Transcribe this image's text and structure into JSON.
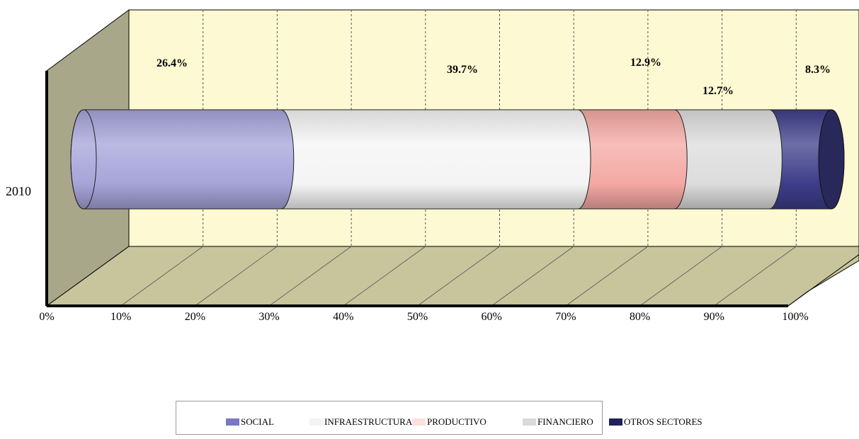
{
  "chart_data": {
    "type": "bar",
    "orientation": "horizontal",
    "stacked": true,
    "style": "3d-cylinder",
    "categories": [
      "2010"
    ],
    "series": [
      {
        "name": "SOCIAL",
        "values": [
          26.4
        ],
        "label": "26.4%",
        "color": "#a6a3d9"
      },
      {
        "name": "INFRAESTRUCTURA",
        "values": [
          39.7
        ],
        "label": "39.7%",
        "color": "#f4f4f4"
      },
      {
        "name": "PRODUCTIVO",
        "values": [
          12.9
        ],
        "label": "12.9%",
        "color": "#f4a8a3"
      },
      {
        "name": "FINANCIERO",
        "values": [
          12.7
        ],
        "label": "12.7%",
        "color": "#dcdcdc"
      },
      {
        "name": "OTROS SECTORES",
        "values": [
          8.3
        ],
        "label": "8.3%",
        "color": "#3d3d8a"
      }
    ],
    "x_ticks": [
      "0%",
      "10%",
      "20%",
      "30%",
      "40%",
      "50%",
      "60%",
      "70%",
      "80%",
      "90%",
      "100%"
    ],
    "xlim": [
      0,
      100
    ],
    "grid": true,
    "legend_position": "bottom",
    "wall_color": "#fdf9d2",
    "side_wall_color": "#a8a78a",
    "floor_color": "#c8c49c"
  }
}
